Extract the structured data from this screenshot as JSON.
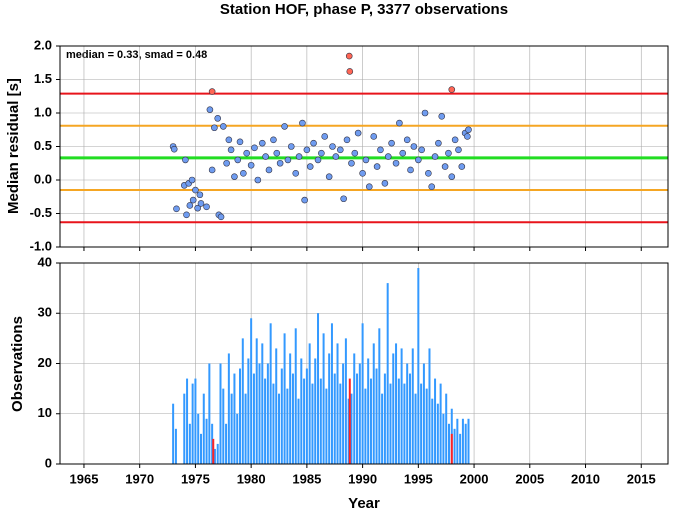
{
  "chart_data": [
    {
      "type": "scatter",
      "title": "Station HOF, phase P, 3377 observations",
      "ylabel": "Median residual [s]",
      "annotation": "median = 0.33, smad = 0.48",
      "xlim": [
        1962.85,
        2017.4
      ],
      "xticks": [
        1965,
        1970,
        1975,
        1980,
        1985,
        1990,
        1995,
        2000,
        2005,
        2010,
        2015
      ],
      "ylim": [
        -1.0,
        2.0
      ],
      "yticks": [
        {
          "value": -1.0,
          "label": "-1.0"
        },
        {
          "value": -0.5,
          "label": "-0.5"
        },
        {
          "value": 0.0,
          "label": "0.0"
        },
        {
          "value": 0.5,
          "label": "0.5"
        },
        {
          "value": 1.0,
          "label": "1.0"
        },
        {
          "value": 1.5,
          "label": "1.5"
        },
        {
          "value": 2.0,
          "label": "2.0"
        }
      ],
      "grid": true,
      "hlines": [
        {
          "value": 1.29,
          "color": "#e8141b"
        },
        {
          "value": 0.81,
          "color": "#f5a623"
        },
        {
          "value": 0.33,
          "color": "#22dd22"
        },
        {
          "value": -0.15,
          "color": "#f5a623"
        },
        {
          "value": -0.63,
          "color": "#e8141b"
        }
      ],
      "series": [
        {
          "color": "#6f9cf0",
          "x": [
            1973.0,
            1973.1,
            1973.3,
            1974.0,
            1974.1,
            1974.2,
            1974.4,
            1974.5,
            1974.7,
            1974.8,
            1975.0,
            1975.2,
            1975.4,
            1975.5,
            1976.0,
            1976.3,
            1976.5,
            1976.7,
            1977.0,
            1977.1,
            1977.3,
            1977.5,
            1977.8,
            1978.0,
            1978.2,
            1978.5,
            1978.8,
            1979.0,
            1979.3,
            1979.6,
            1980.0,
            1980.3,
            1980.6,
            1981.0,
            1981.3,
            1981.6,
            1982.0,
            1982.3,
            1982.6,
            1983.0,
            1983.3,
            1983.6,
            1984.0,
            1984.3,
            1984.6,
            1984.8,
            1985.0,
            1985.3,
            1985.6,
            1986.0,
            1986.3,
            1986.6,
            1987.0,
            1987.3,
            1987.6,
            1988.0,
            1988.3,
            1988.6,
            1989.0,
            1989.3,
            1989.6,
            1990.0,
            1990.3,
            1990.6,
            1991.0,
            1991.3,
            1991.6,
            1992.0,
            1992.3,
            1992.6,
            1993.0,
            1993.3,
            1993.6,
            1994.0,
            1994.3,
            1994.6,
            1995.0,
            1995.3,
            1995.6,
            1995.9,
            1996.2,
            1996.5,
            1996.8,
            1997.1,
            1997.4,
            1997.7,
            1998.0,
            1998.3,
            1998.6,
            1998.9,
            1999.2,
            1999.4,
            1999.5
          ],
          "values": [
            0.5,
            0.46,
            -0.43,
            -0.08,
            0.3,
            -0.52,
            -0.05,
            -0.38,
            0.0,
            -0.3,
            -0.15,
            -0.42,
            -0.22,
            -0.35,
            -0.4,
            1.05,
            0.15,
            0.78,
            0.92,
            -0.52,
            -0.55,
            0.8,
            0.25,
            0.6,
            0.45,
            0.05,
            0.3,
            0.57,
            0.1,
            0.4,
            0.22,
            0.48,
            0.0,
            0.55,
            0.35,
            0.15,
            0.6,
            0.4,
            0.25,
            0.8,
            0.3,
            0.5,
            0.1,
            0.35,
            0.85,
            -0.3,
            0.45,
            0.2,
            0.55,
            0.3,
            0.4,
            0.65,
            0.05,
            0.5,
            0.35,
            0.45,
            -0.28,
            0.6,
            0.25,
            0.4,
            0.7,
            0.1,
            0.3,
            -0.1,
            0.65,
            0.2,
            0.45,
            -0.05,
            0.35,
            0.55,
            0.25,
            0.85,
            0.4,
            0.6,
            0.15,
            0.5,
            0.3,
            0.45,
            1.0,
            0.1,
            -0.1,
            0.35,
            0.55,
            0.95,
            0.2,
            0.4,
            0.05,
            0.6,
            0.45,
            0.2,
            0.7,
            0.65,
            0.75
          ]
        },
        {
          "color": "#ff6655",
          "x": [
            1976.5,
            1988.8,
            1988.85,
            1998.0
          ],
          "values": [
            1.32,
            1.85,
            1.62,
            1.35
          ]
        }
      ]
    },
    {
      "type": "bar",
      "ylabel": "Observations",
      "xlabel": "Year",
      "xlim": [
        1962.85,
        2017.4
      ],
      "xticks": [
        1965,
        1970,
        1975,
        1980,
        1985,
        1990,
        1995,
        2000,
        2005,
        2010,
        2015
      ],
      "ylim": [
        0,
        40
      ],
      "yticks": [
        0,
        10,
        20,
        30,
        40
      ],
      "grid": true,
      "series": [
        {
          "color": "#3399ff",
          "x": [
            1973.0,
            1973.25,
            1973.5,
            1973.75,
            1974.0,
            1974.25,
            1974.5,
            1974.75,
            1975.0,
            1975.25,
            1975.5,
            1975.75,
            1976.0,
            1976.25,
            1976.5,
            1976.75,
            1977.0,
            1977.25,
            1977.5,
            1977.75,
            1978.0,
            1978.25,
            1978.5,
            1978.75,
            1979.0,
            1979.25,
            1979.5,
            1979.75,
            1980.0,
            1980.25,
            1980.5,
            1980.75,
            1981.0,
            1981.25,
            1981.5,
            1981.75,
            1982.0,
            1982.25,
            1982.5,
            1982.75,
            1983.0,
            1983.25,
            1983.5,
            1983.75,
            1984.0,
            1984.25,
            1984.5,
            1984.75,
            1985.0,
            1985.25,
            1985.5,
            1985.75,
            1986.0,
            1986.25,
            1986.5,
            1986.75,
            1987.0,
            1987.25,
            1987.5,
            1987.75,
            1988.0,
            1988.25,
            1988.5,
            1988.75,
            1989.0,
            1989.25,
            1989.5,
            1989.75,
            1990.0,
            1990.25,
            1990.5,
            1990.75,
            1991.0,
            1991.25,
            1991.5,
            1991.75,
            1992.0,
            1992.25,
            1992.5,
            1992.75,
            1993.0,
            1993.25,
            1993.5,
            1993.75,
            1994.0,
            1994.25,
            1994.5,
            1994.75,
            1995.0,
            1995.25,
            1995.5,
            1995.75,
            1996.0,
            1996.25,
            1996.5,
            1996.75,
            1997.0,
            1997.25,
            1997.5,
            1997.75,
            1998.0,
            1998.25,
            1998.5,
            1998.75,
            1999.0,
            1999.25,
            1999.5
          ],
          "values": [
            12,
            7,
            0,
            0,
            14,
            17,
            8,
            16,
            17,
            10,
            6,
            14,
            9,
            20,
            8,
            3,
            4,
            20,
            15,
            8,
            22,
            14,
            18,
            10,
            19,
            25,
            14,
            21,
            29,
            18,
            25,
            20,
            24,
            17,
            20,
            28,
            16,
            23,
            14,
            19,
            26,
            15,
            22,
            18,
            27,
            13,
            21,
            17,
            19,
            24,
            16,
            21,
            30,
            17,
            26,
            15,
            22,
            28,
            18,
            24,
            16,
            20,
            25,
            13,
            14,
            22,
            18,
            20,
            28,
            15,
            21,
            17,
            24,
            19,
            27,
            14,
            18,
            36,
            16,
            22,
            24,
            17,
            23,
            16,
            20,
            18,
            23,
            14,
            39,
            16,
            20,
            15,
            23,
            13,
            17,
            12,
            16,
            10,
            14,
            8,
            11,
            7,
            9,
            6,
            9,
            8,
            9
          ]
        },
        {
          "color": "#ff2222",
          "x": [
            1976.6,
            1988.85,
            1998.0
          ],
          "values": [
            5,
            17,
            6
          ]
        }
      ]
    }
  ]
}
